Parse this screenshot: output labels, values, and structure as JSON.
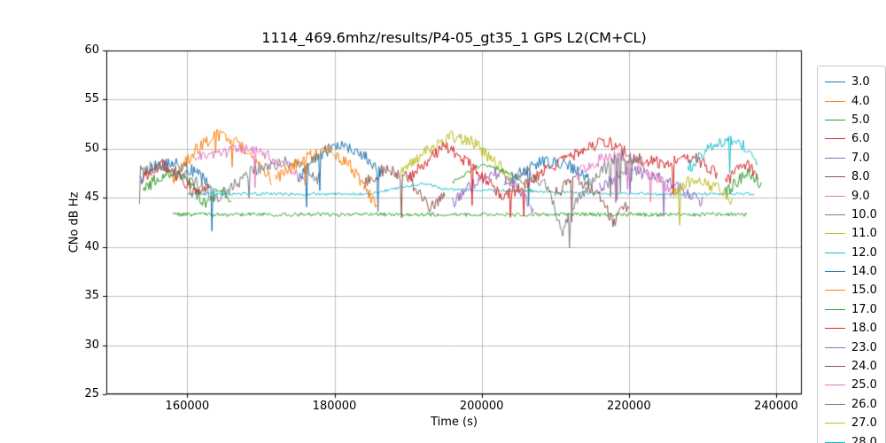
{
  "chart_data": {
    "type": "line",
    "title": "1114_469.6mhz/results/P4-05_gt35_1 GPS L2(CM+CL)",
    "xlabel": "Time (s)",
    "ylabel": "CNo dB Hz",
    "xlim": [
      149000,
      243500
    ],
    "ylim": [
      25,
      60
    ],
    "x_ticks": [
      160000,
      180000,
      200000,
      220000,
      240000
    ],
    "y_ticks": [
      25,
      30,
      35,
      40,
      45,
      50,
      55,
      60
    ],
    "grid": true,
    "grid_color": "#b0b0b0",
    "legend_position": "right-outside",
    "noise_amplitude": 0.65,
    "sample_step": 150,
    "series": [
      {
        "name": "3.0",
        "color": "#1f77b4",
        "segments": [
          [
            [
              153500,
              46.8
            ],
            [
              155500,
              48.3
            ],
            [
              158500,
              48.6
            ],
            [
              161500,
              47.4
            ],
            [
              163500,
              45.8
            ]
          ]
        ]
      },
      {
        "name": "4.0",
        "color": "#ff7f0e",
        "segments": [
          [
            [
              158000,
              46.8
            ],
            [
              161000,
              49.8
            ],
            [
              164000,
              51.4
            ],
            [
              167000,
              50.6
            ],
            [
              169500,
              48.6
            ],
            [
              171500,
              46.8
            ]
          ]
        ]
      },
      {
        "name": "5.0",
        "color": "#2ca02c",
        "segments": [
          [
            [
              154000,
              45.8
            ],
            [
              157000,
              47.6
            ],
            [
              160000,
              46.8
            ],
            [
              162500,
              44.2
            ],
            [
              164500,
              46.0
            ],
            [
              166000,
              45.0
            ]
          ],
          [
            [
              233000,
              45.5
            ],
            [
              236000,
              47.5
            ],
            [
              238000,
              46.5
            ]
          ]
        ]
      },
      {
        "name": "6.0",
        "color": "#d62728",
        "segments": [
          [
            [
              154000,
              47.0
            ],
            [
              156500,
              48.5
            ],
            [
              159000,
              47.2
            ],
            [
              161000,
              45.5
            ],
            [
              163000,
              46.5
            ]
          ],
          [
            [
              233000,
              46.5
            ],
            [
              235500,
              48.5
            ],
            [
              237500,
              47.5
            ]
          ]
        ]
      },
      {
        "name": "7.0",
        "color": "#9467bd",
        "segments": [
          [
            [
              196000,
              44.5
            ],
            [
              199000,
              46.5
            ],
            [
              202000,
              47.5
            ],
            [
              205000,
              46.0
            ],
            [
              207000,
              43.5
            ]
          ]
        ]
      },
      {
        "name": "8.0",
        "color": "#8c564b",
        "segments": [
          [
            [
              184000,
              46.5
            ],
            [
              187000,
              48.0
            ],
            [
              190000,
              47.0
            ],
            [
              193000,
              44.0
            ],
            [
              195000,
              45.5
            ]
          ]
        ]
      },
      {
        "name": "9.0",
        "color": "#e377c2",
        "segments": [
          [
            [
              161000,
              48.8
            ],
            [
              164000,
              49.6
            ],
            [
              168000,
              49.9
            ],
            [
              171000,
              49.2
            ],
            [
              174000,
              48.0
            ],
            [
              176000,
              46.5
            ]
          ]
        ]
      },
      {
        "name": "10.0",
        "color": "#7f7f7f",
        "segments": [
          [
            [
              153500,
              47.8
            ],
            [
              156000,
              48.3
            ],
            [
              159000,
              47.6
            ],
            [
              162000,
              46.2
            ],
            [
              164000,
              44.8
            ],
            [
              166000,
              46.0
            ],
            [
              169000,
              47.8
            ],
            [
              173000,
              48.6
            ],
            [
              176000,
              48.2
            ],
            [
              178000,
              46.8
            ]
          ]
        ]
      },
      {
        "name": "11.0",
        "color": "#bcbd22",
        "segments": [
          [
            [
              189000,
              47.5
            ],
            [
              193000,
              50.0
            ],
            [
              196000,
              51.3
            ],
            [
              199000,
              50.6
            ],
            [
              202000,
              48.5
            ],
            [
              204000,
              47.0
            ]
          ]
        ]
      },
      {
        "name": "12.0",
        "color": "#17becf",
        "noise": 0.15,
        "segments": [
          [
            [
              160000,
              45.4
            ],
            [
              185000,
              45.4
            ],
            [
              188000,
              45.9
            ],
            [
              192000,
              46.5
            ],
            [
              195000,
              45.9
            ],
            [
              220000,
              45.4
            ],
            [
              237000,
              45.4
            ]
          ]
        ]
      },
      {
        "name": "14.0",
        "color": "#1f77b4",
        "segments": [
          [
            [
              175000,
              47.0
            ],
            [
              178000,
              49.5
            ],
            [
              181000,
              50.4
            ],
            [
              184000,
              49.3
            ],
            [
              186500,
              47.5
            ]
          ],
          [
            [
              204000,
              47.0
            ],
            [
              208000,
              48.8
            ],
            [
              212000,
              48.2
            ],
            [
              215000,
              46.5
            ]
          ]
        ]
      },
      {
        "name": "15.0",
        "color": "#ff7f0e",
        "segments": [
          [
            [
              172000,
              47.0
            ],
            [
              176000,
              49.0
            ],
            [
              179000,
              49.8
            ],
            [
              182000,
              48.5
            ],
            [
              184500,
              45.5
            ],
            [
              186000,
              44.0
            ]
          ]
        ]
      },
      {
        "name": "17.0",
        "color": "#2ca02c",
        "noise": 0.2,
        "segments": [
          [
            [
              158000,
              43.3
            ],
            [
              236000,
              43.3
            ]
          ],
          [
            [
              196000,
              46.5
            ],
            [
              200000,
              48.5
            ],
            [
              204000,
              47.5
            ],
            [
              207000,
              45.5
            ]
          ]
        ]
      },
      {
        "name": "18.0",
        "color": "#d62728",
        "segments": [
          [
            [
              190000,
              47.0
            ],
            [
              195000,
              50.3
            ],
            [
              199000,
              48.0
            ],
            [
              203000,
              45.0
            ],
            [
              208000,
              47.5
            ],
            [
              213000,
              49.5
            ],
            [
              217000,
              50.8
            ],
            [
              221000,
              49.0
            ],
            [
              225000,
              48.5
            ],
            [
              229000,
              49.0
            ],
            [
              232000,
              47.5
            ]
          ]
        ]
      },
      {
        "name": "23.0",
        "color": "#9467bd",
        "segments": [
          [
            [
              216000,
              46.0
            ],
            [
              220000,
              47.8
            ],
            [
              224000,
              47.2
            ],
            [
              228000,
              45.5
            ],
            [
              230000,
              44.5
            ]
          ]
        ]
      },
      {
        "name": "24.0",
        "color": "#8c564b",
        "segments": [
          [
            [
              210000,
              45.5
            ],
            [
              213000,
              47.0
            ],
            [
              216000,
              45.0
            ],
            [
              218000,
              42.5
            ],
            [
              220000,
              44.5
            ]
          ]
        ]
      },
      {
        "name": "25.0",
        "color": "#e377c2",
        "segments": [
          [
            [
              213000,
              47.5
            ],
            [
              217000,
              49.3
            ],
            [
              221000,
              48.6
            ],
            [
              224000,
              47.0
            ],
            [
              226000,
              45.5
            ]
          ]
        ]
      },
      {
        "name": "26.0",
        "color": "#7f7f7f",
        "segments": [
          [
            [
              203000,
              46.5
            ],
            [
              206000,
              47.8
            ],
            [
              209000,
              46.0
            ],
            [
              211000,
              41.5
            ],
            [
              213000,
              45.0
            ],
            [
              216000,
              47.5
            ],
            [
              219000,
              49.3
            ],
            [
              222000,
              48.5
            ]
          ]
        ]
      },
      {
        "name": "27.0",
        "color": "#bcbd22",
        "segments": [
          [
            [
              226000,
              45.5
            ],
            [
              229000,
              47.0
            ],
            [
              232000,
              46.0
            ],
            [
              234000,
              44.5
            ]
          ]
        ]
      },
      {
        "name": "28.0",
        "color": "#17becf",
        "segments": [
          [
            [
              228000,
              48.0
            ],
            [
              231000,
              50.0
            ],
            [
              234000,
              51.0
            ],
            [
              236000,
              50.0
            ],
            [
              237500,
              48.0
            ]
          ]
        ]
      }
    ]
  }
}
